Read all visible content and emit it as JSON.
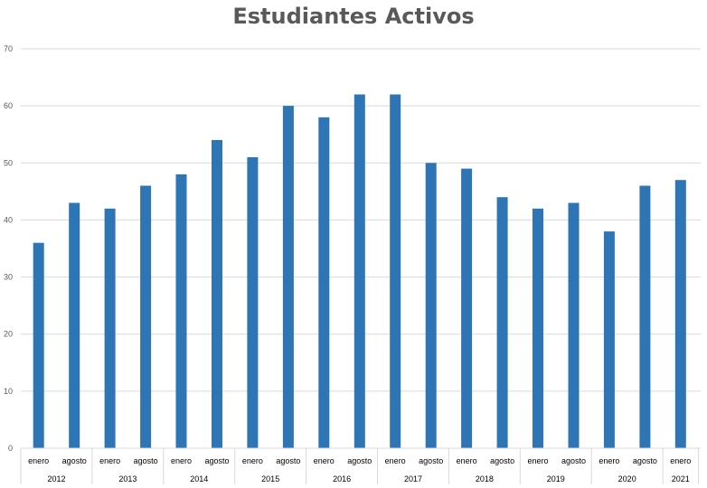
{
  "chart_data": {
    "type": "bar",
    "title": "Estudiantes Activos",
    "xlabel": "",
    "ylabel": "",
    "ylim": [
      0,
      70
    ],
    "yticks": [
      0,
      10,
      20,
      30,
      40,
      50,
      60,
      70
    ],
    "grid": true,
    "legend": "none",
    "bar_color": "#2E75B6",
    "grid_color": "#D9D9D9",
    "categories": [
      {
        "month": "enero",
        "year": "2012"
      },
      {
        "month": "agosto",
        "year": "2012"
      },
      {
        "month": "enero",
        "year": "2013"
      },
      {
        "month": "agosto",
        "year": "2013"
      },
      {
        "month": "enero",
        "year": "2014"
      },
      {
        "month": "agosto",
        "year": "2014"
      },
      {
        "month": "enero",
        "year": "2015"
      },
      {
        "month": "agosto",
        "year": "2015"
      },
      {
        "month": "enero",
        "year": "2016"
      },
      {
        "month": "agosto",
        "year": "2016"
      },
      {
        "month": "enero",
        "year": "2017"
      },
      {
        "month": "agosto",
        "year": "2017"
      },
      {
        "month": "enero",
        "year": "2018"
      },
      {
        "month": "agosto",
        "year": "2018"
      },
      {
        "month": "enero",
        "year": "2019"
      },
      {
        "month": "agosto",
        "year": "2019"
      },
      {
        "month": "enero",
        "year": "2020"
      },
      {
        "month": "agosto",
        "year": "2020"
      },
      {
        "month": "enero",
        "year": "2021"
      }
    ],
    "years": [
      "2012",
      "2013",
      "2014",
      "2015",
      "2016",
      "2017",
      "2018",
      "2019",
      "2020",
      "2021"
    ],
    "values": [
      36,
      43,
      42,
      46,
      48,
      54,
      51,
      60,
      58,
      62,
      62,
      50,
      49,
      44,
      42,
      43,
      38,
      46,
      47
    ]
  }
}
